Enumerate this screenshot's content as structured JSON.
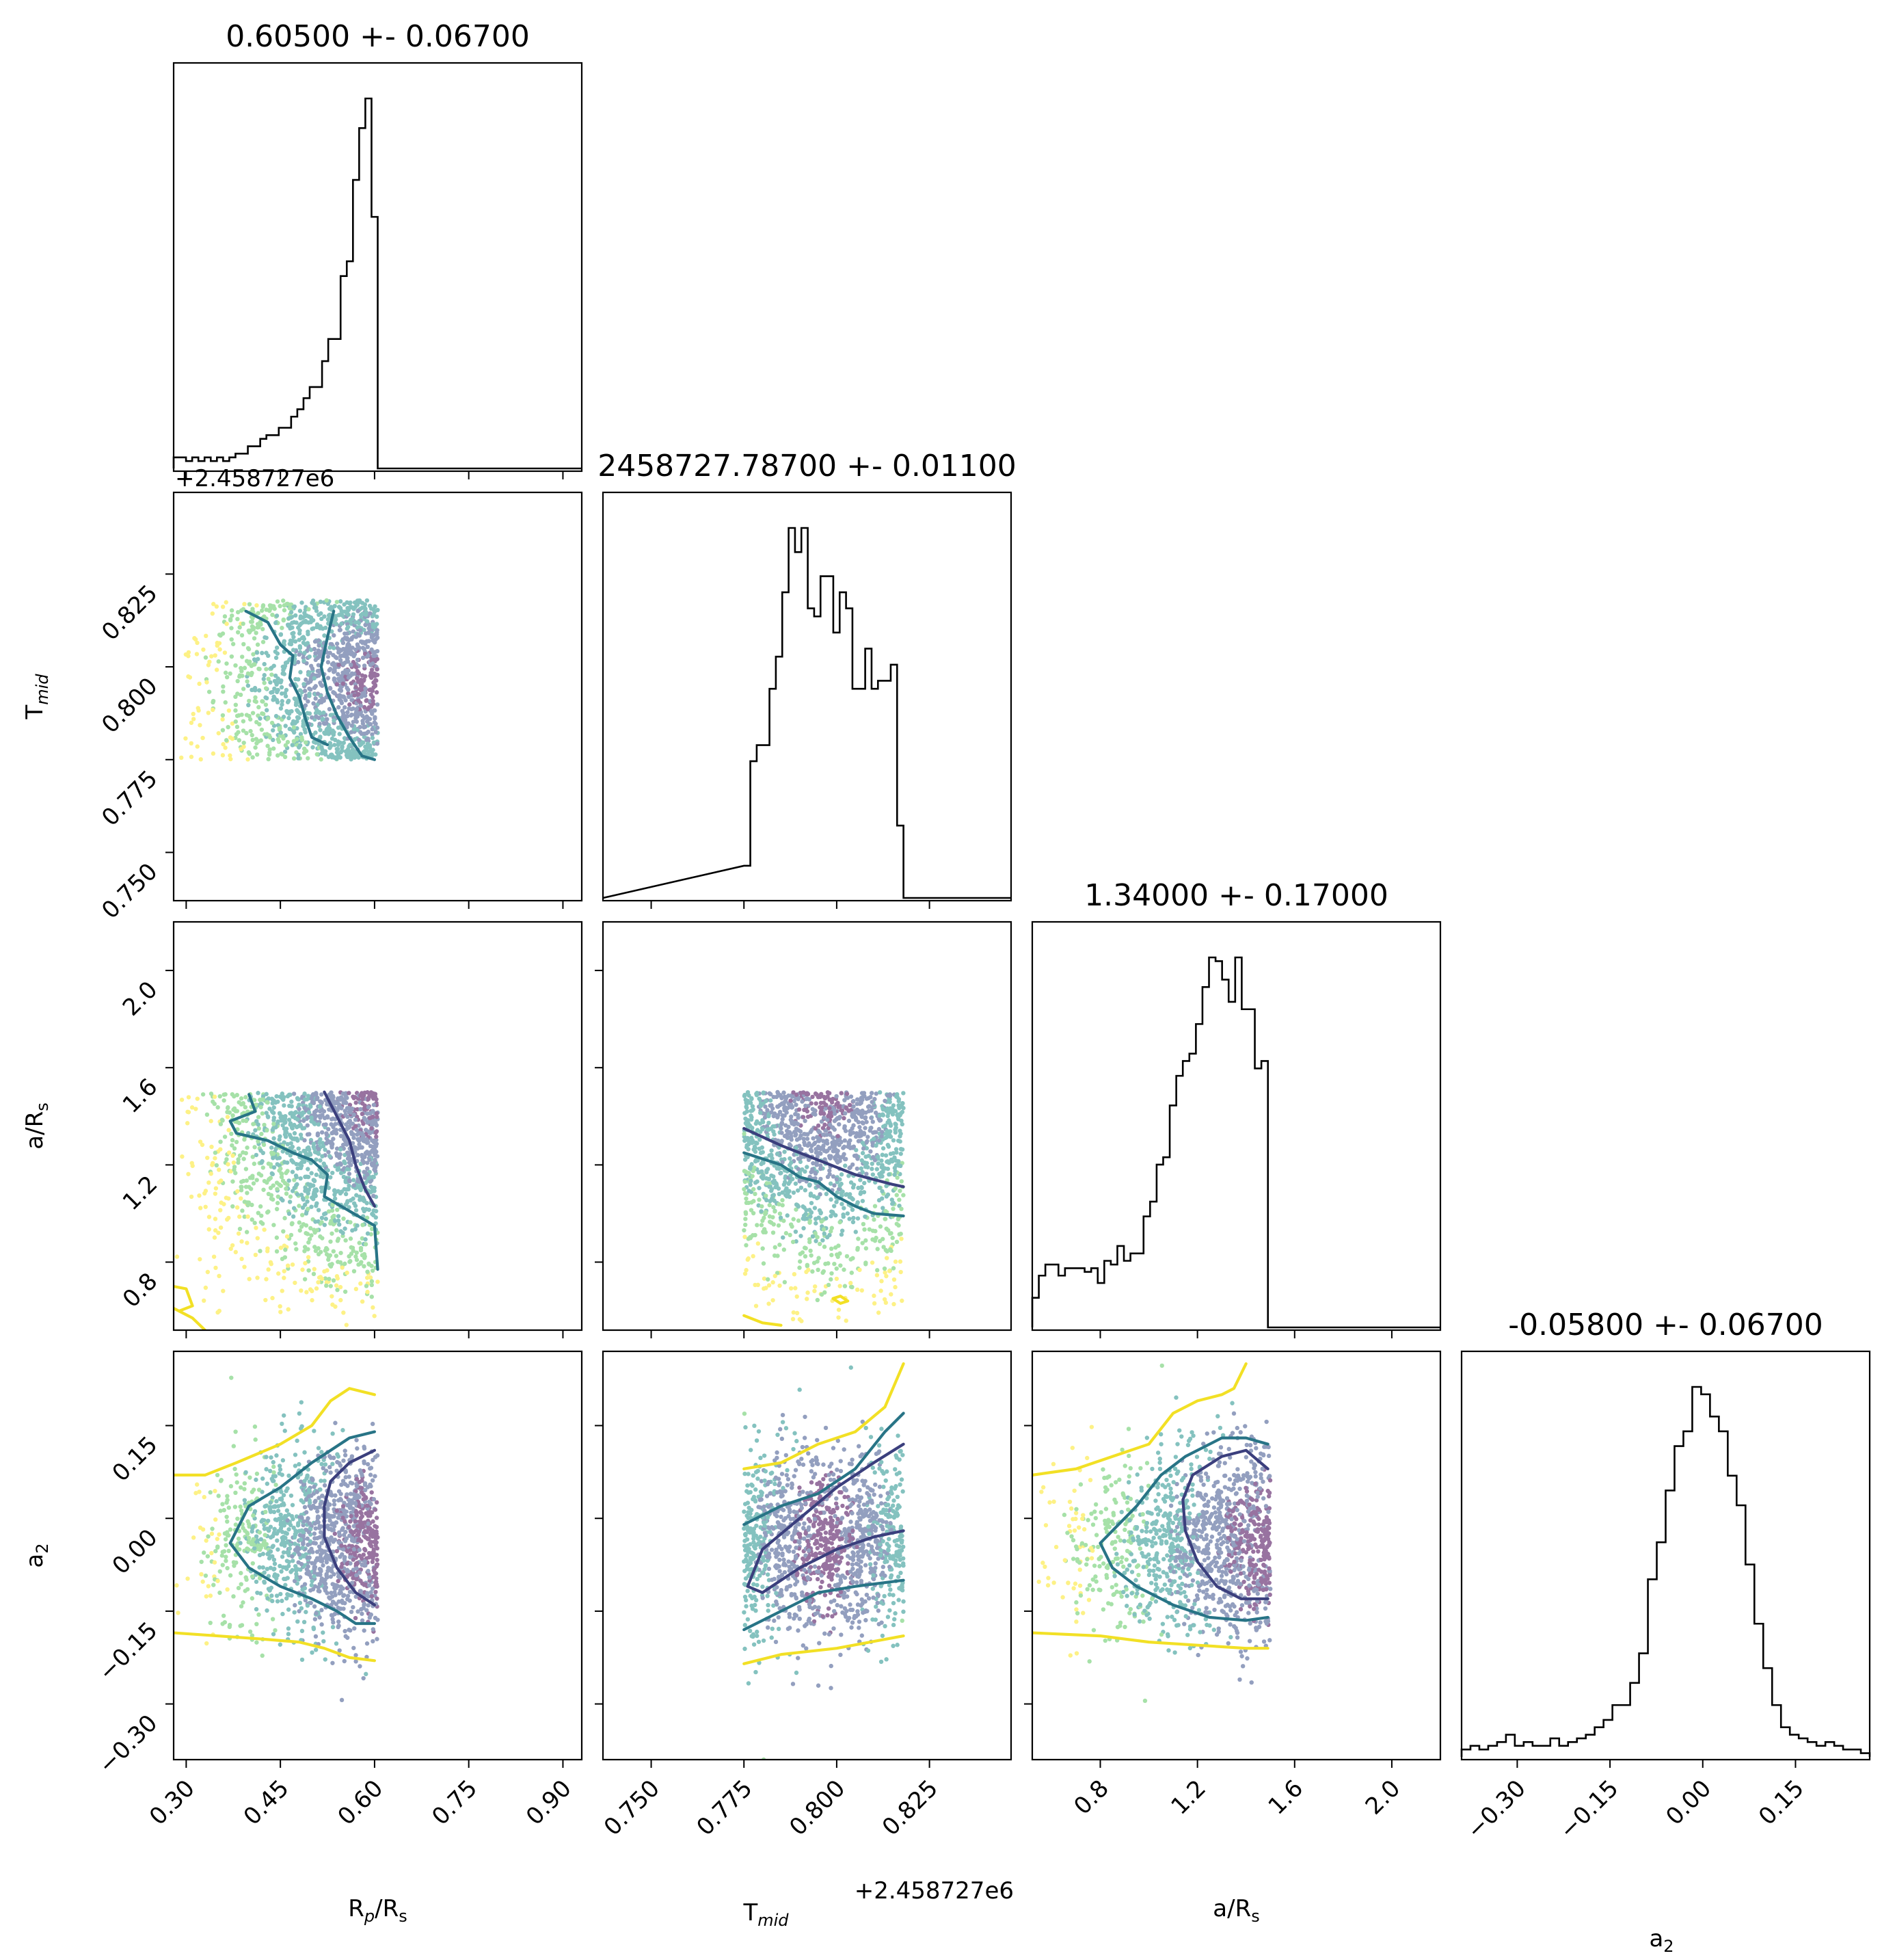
{
  "chart_data": {
    "type": "corner",
    "parameters": [
      {
        "key": "rp",
        "label_main": "R",
        "label_sub1": "p",
        "label_mid": "/R",
        "label_sub2": "s",
        "title": "0.60500 +- 0.06700",
        "range": [
          0.28,
          0.93
        ],
        "ticks": [
          0.3,
          0.45,
          0.6,
          0.75,
          0.9
        ],
        "tick_labels": [
          "0.30",
          "0.45",
          "0.60",
          "0.75",
          "0.90"
        ]
      },
      {
        "key": "tmid",
        "label_main": "T",
        "label_sub1": "mid",
        "label_mid": "",
        "label_sub2": "",
        "title": "2458727.78700 +- 0.01100",
        "range": [
          0.737,
          0.847
        ],
        "ticks": [
          0.75,
          0.775,
          0.8,
          0.825
        ],
        "tick_labels": [
          "0.750",
          "0.775",
          "0.800",
          "0.825"
        ],
        "offset_text": "+2.458727e6"
      },
      {
        "key": "ars",
        "label_main": "a/R",
        "label_sub1": "",
        "label_mid": "",
        "label_sub2": "s",
        "title": "1.34000 +- 0.17000",
        "range": [
          0.52,
          2.2
        ],
        "ticks": [
          0.8,
          1.2,
          1.6,
          2.0
        ],
        "tick_labels": [
          "0.8",
          "1.2",
          "1.6",
          "2.0"
        ]
      },
      {
        "key": "a2",
        "label_main": "a",
        "label_sub1": "",
        "label_mid": "",
        "label_sub2": "2",
        "title": "-0.05800 +- 0.06700",
        "range": [
          -0.39,
          0.27
        ],
        "ticks": [
          -0.3,
          -0.15,
          0.0,
          0.15
        ],
        "tick_labels": [
          "−0.30",
          "−0.15",
          "0.00",
          "0.15"
        ]
      }
    ],
    "histograms": {
      "rp": {
        "edges": [
          0.28,
          0.605
        ],
        "counts": [
          3,
          3,
          2,
          3,
          2,
          3,
          2,
          3,
          2,
          3,
          4,
          4,
          6,
          6,
          8,
          9,
          9,
          11,
          11,
          14,
          16,
          19,
          22,
          22,
          29,
          35,
          35,
          52,
          56,
          78,
          92,
          100,
          68
        ]
      },
      "tmid": {
        "edges": [
          0.775,
          0.818
        ],
        "counts": [
          8,
          34,
          38,
          38,
          52,
          60,
          76,
          92,
          86,
          92,
          72,
          70,
          80,
          80,
          66,
          76,
          72,
          52,
          52,
          62,
          52,
          54,
          54,
          58,
          18
        ]
      },
      "ars": {
        "edges": [
          0.52,
          1.49
        ],
        "counts": [
          8,
          14,
          17,
          17,
          14,
          16,
          16,
          16,
          15,
          16,
          12,
          18,
          17,
          22,
          18,
          20,
          20,
          30,
          34,
          44,
          46,
          60,
          68,
          72,
          74,
          82,
          92,
          100,
          99,
          94,
          88,
          100,
          86,
          86,
          70,
          72
        ]
      },
      "a2": {
        "edges": [
          -0.39,
          0.27
        ],
        "counts": [
          2,
          3,
          2,
          3,
          4,
          6,
          3,
          4,
          3,
          3,
          5,
          3,
          4,
          5,
          6,
          8,
          10,
          14,
          14,
          20,
          28,
          48,
          58,
          72,
          84,
          88,
          100,
          98,
          92,
          88,
          76,
          68,
          52,
          36,
          24,
          14,
          8,
          6,
          5,
          4,
          3,
          4,
          3,
          2,
          2,
          1
        ]
      }
    },
    "scatter_bounds": {
      "rp": [
        0.28,
        0.605
      ],
      "tmid": [
        0.775,
        0.818
      ],
      "ars": [
        0.52,
        1.5
      ],
      "a2": [
        -0.39,
        0.27
      ]
    },
    "contour_colors": {
      "inner": "#3b3f7d",
      "mid": "#287486",
      "outer": "#f2e025"
    },
    "scatter_colormap": [
      "#440154",
      "#3b528b",
      "#21918c",
      "#5ec962",
      "#fde725"
    ]
  }
}
